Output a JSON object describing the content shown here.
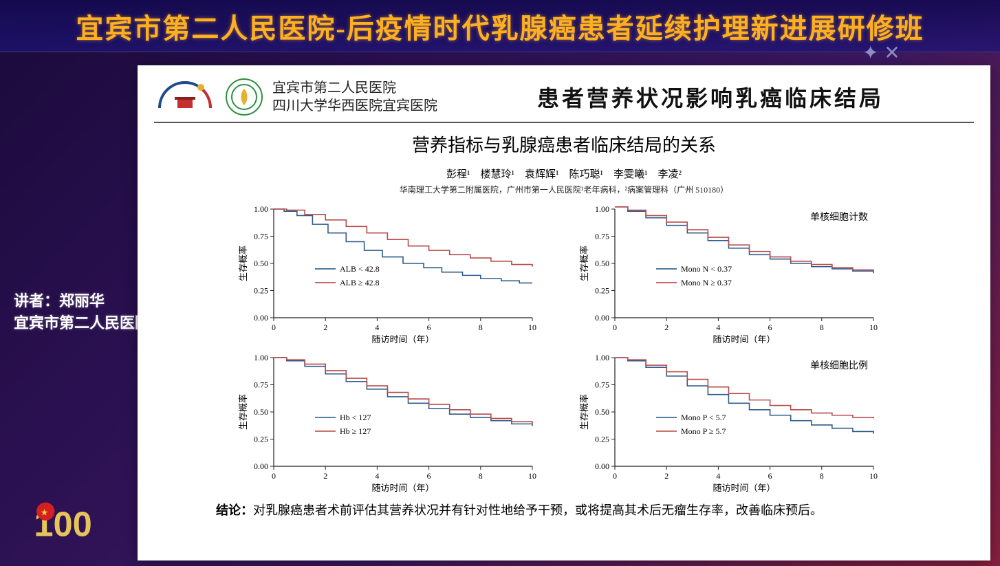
{
  "banner": {
    "title": "宜宾市第二人民医院-后疫情时代乳腺癌患者延续护理新进展研修班",
    "title_color": "#ffb020",
    "title_fontsize": 40
  },
  "speaker": {
    "line1": "讲者：郑丽华",
    "line2": "宜宾市第二人民医院"
  },
  "slide": {
    "header": {
      "hospital_line1": "宜宾市第二人民医院",
      "hospital_line2": "四川大学华西医院宜宾医院",
      "title": "患者营养状况影响乳癌临床结局"
    },
    "paper": {
      "title": "营养指标与乳腺癌患者临床结局的关系",
      "authors": "彭程¹　楼慧玲¹　袁辉辉¹　陈巧聪¹　李雯曦¹　李凌²",
      "affiliation": "华南理工大学第二附属医院，广州市第一人民医院¹老年病科，²病案管理科（广州 510180）"
    },
    "charts_common": {
      "xlabel": "随访时间（年）",
      "ylabel": "生存概率",
      "xlim": [
        0,
        10
      ],
      "ylim": [
        0,
        1.0
      ],
      "xticks": [
        0,
        2,
        4,
        6,
        8,
        10
      ],
      "yticks": [
        0.0,
        0.25,
        0.5,
        0.75,
        1.0
      ],
      "ytick_labels": [
        "0.00",
        "0.25",
        "0.50",
        "0.75",
        "1.00"
      ],
      "line_width": 1.6,
      "font_size_axis": 12,
      "font_size_legend": 12,
      "font_size_label": 13,
      "colors": {
        "series1": "#2f5b8a",
        "series2": "#b84a4a",
        "axis": "#222222",
        "background": "#ffffff"
      }
    },
    "charts": [
      {
        "panel_label": "",
        "legend": [
          {
            "label": "ALB < 42.8",
            "color": "#2f5b8a"
          },
          {
            "label": "ALB ≥ 42.8",
            "color": "#b84a4a"
          }
        ],
        "legend_pos": "inside-left",
        "series": [
          {
            "color": "#2f5b8a",
            "points": [
              [
                0,
                1.0
              ],
              [
                0.4,
                0.98
              ],
              [
                0.9,
                0.94
              ],
              [
                1.5,
                0.86
              ],
              [
                2.1,
                0.78
              ],
              [
                2.8,
                0.7
              ],
              [
                3.5,
                0.62
              ],
              [
                4.2,
                0.56
              ],
              [
                5.0,
                0.5
              ],
              [
                5.8,
                0.46
              ],
              [
                6.5,
                0.42
              ],
              [
                7.3,
                0.39
              ],
              [
                8.0,
                0.36
              ],
              [
                8.8,
                0.34
              ],
              [
                9.5,
                0.32
              ],
              [
                10,
                0.32
              ]
            ]
          },
          {
            "color": "#b84a4a",
            "points": [
              [
                0,
                1.0
              ],
              [
                0.5,
                0.99
              ],
              [
                1.2,
                0.95
              ],
              [
                2.0,
                0.9
              ],
              [
                2.8,
                0.84
              ],
              [
                3.6,
                0.78
              ],
              [
                4.4,
                0.72
              ],
              [
                5.2,
                0.66
              ],
              [
                6.0,
                0.62
              ],
              [
                6.8,
                0.58
              ],
              [
                7.6,
                0.55
              ],
              [
                8.4,
                0.52
              ],
              [
                9.2,
                0.49
              ],
              [
                10,
                0.47
              ]
            ]
          }
        ]
      },
      {
        "panel_label": "单核细胞计数",
        "legend": [
          {
            "label": "Mono N < 0.37",
            "color": "#2f5b8a"
          },
          {
            "label": "Mono N ≥ 0.37",
            "color": "#b84a4a"
          }
        ],
        "legend_pos": "inside-left",
        "series": [
          {
            "color": "#2f5b8a",
            "points": [
              [
                0,
                1.02
              ],
              [
                0.5,
                0.98
              ],
              [
                1.2,
                0.92
              ],
              [
                2.0,
                0.85
              ],
              [
                2.8,
                0.78
              ],
              [
                3.6,
                0.71
              ],
              [
                4.4,
                0.64
              ],
              [
                5.2,
                0.58
              ],
              [
                6.0,
                0.54
              ],
              [
                6.8,
                0.5
              ],
              [
                7.6,
                0.47
              ],
              [
                8.4,
                0.45
              ],
              [
                9.2,
                0.43
              ],
              [
                10,
                0.41
              ]
            ]
          },
          {
            "color": "#b84a4a",
            "points": [
              [
                0,
                1.02
              ],
              [
                0.5,
                0.99
              ],
              [
                1.2,
                0.94
              ],
              [
                2.0,
                0.88
              ],
              [
                2.8,
                0.81
              ],
              [
                3.6,
                0.74
              ],
              [
                4.4,
                0.67
              ],
              [
                5.2,
                0.61
              ],
              [
                6.0,
                0.56
              ],
              [
                6.8,
                0.52
              ],
              [
                7.6,
                0.49
              ],
              [
                8.4,
                0.46
              ],
              [
                9.2,
                0.44
              ],
              [
                10,
                0.42
              ]
            ]
          }
        ]
      },
      {
        "panel_label": "",
        "legend": [
          {
            "label": "Hb < 127",
            "color": "#2f5b8a"
          },
          {
            "label": "Hb ≥ 127",
            "color": "#b84a4a"
          }
        ],
        "legend_pos": "inside-left",
        "series": [
          {
            "color": "#2f5b8a",
            "points": [
              [
                0,
                1.0
              ],
              [
                0.5,
                0.97
              ],
              [
                1.2,
                0.92
              ],
              [
                2.0,
                0.85
              ],
              [
                2.8,
                0.78
              ],
              [
                3.6,
                0.71
              ],
              [
                4.4,
                0.64
              ],
              [
                5.2,
                0.58
              ],
              [
                6.0,
                0.53
              ],
              [
                6.8,
                0.48
              ],
              [
                7.6,
                0.45
              ],
              [
                8.4,
                0.42
              ],
              [
                9.2,
                0.39
              ],
              [
                10,
                0.37
              ]
            ]
          },
          {
            "color": "#b84a4a",
            "points": [
              [
                0,
                1.0
              ],
              [
                0.5,
                0.98
              ],
              [
                1.2,
                0.94
              ],
              [
                2.0,
                0.88
              ],
              [
                2.8,
                0.81
              ],
              [
                3.6,
                0.74
              ],
              [
                4.4,
                0.68
              ],
              [
                5.2,
                0.62
              ],
              [
                6.0,
                0.57
              ],
              [
                6.8,
                0.52
              ],
              [
                7.6,
                0.48
              ],
              [
                8.4,
                0.44
              ],
              [
                9.2,
                0.41
              ],
              [
                10,
                0.39
              ]
            ]
          }
        ]
      },
      {
        "panel_label": "单核细胞比例",
        "legend": [
          {
            "label": "Mono P < 5.7",
            "color": "#2f5b8a"
          },
          {
            "label": "Mono P ≥ 5.7",
            "color": "#b84a4a"
          }
        ],
        "legend_pos": "inside-left",
        "series": [
          {
            "color": "#2f5b8a",
            "points": [
              [
                0,
                1.0
              ],
              [
                0.5,
                0.97
              ],
              [
                1.2,
                0.91
              ],
              [
                2.0,
                0.83
              ],
              [
                2.8,
                0.74
              ],
              [
                3.6,
                0.66
              ],
              [
                4.4,
                0.58
              ],
              [
                5.2,
                0.52
              ],
              [
                6.0,
                0.47
              ],
              [
                6.8,
                0.42
              ],
              [
                7.6,
                0.38
              ],
              [
                8.4,
                0.35
              ],
              [
                9.2,
                0.32
              ],
              [
                10,
                0.3
              ]
            ]
          },
          {
            "color": "#b84a4a",
            "points": [
              [
                0,
                1.0
              ],
              [
                0.5,
                0.98
              ],
              [
                1.2,
                0.93
              ],
              [
                2.0,
                0.87
              ],
              [
                2.8,
                0.8
              ],
              [
                3.6,
                0.73
              ],
              [
                4.4,
                0.67
              ],
              [
                5.2,
                0.61
              ],
              [
                6.0,
                0.56
              ],
              [
                6.8,
                0.52
              ],
              [
                7.6,
                0.49
              ],
              [
                8.4,
                0.47
              ],
              [
                9.2,
                0.45
              ],
              [
                10,
                0.44
              ]
            ]
          }
        ]
      }
    ],
    "conclusion": {
      "label": "结论：",
      "text": "对乳腺癌患者术前评估其营养状况并有针对性地给予干预，或将提高其术后无瘤生存率，改善临床预后。"
    }
  }
}
